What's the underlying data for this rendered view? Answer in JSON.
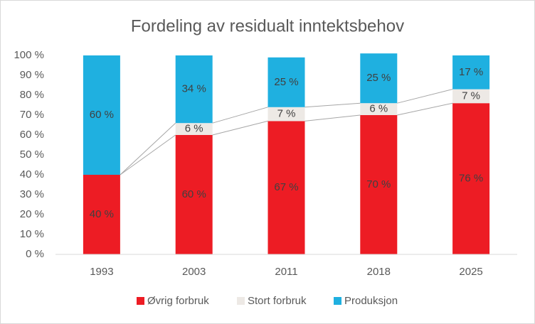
{
  "chart_data": {
    "type": "stacked_bar_percent",
    "title": "Fordeling av residualt inntektsbehov",
    "categories": [
      "1993",
      "2003",
      "2011",
      "2018",
      "2025"
    ],
    "series": [
      {
        "name": "Øvrig forbruk",
        "color": "#ed1c24",
        "values": [
          40,
          60,
          67,
          70,
          76
        ],
        "value_labels": [
          "40 %",
          "60 %",
          "67 %",
          "70 %",
          "76 %"
        ]
      },
      {
        "name": "Stort forbruk",
        "color": "#ede9e5",
        "values": [
          0,
          6,
          7,
          6,
          7
        ],
        "value_labels": [
          null,
          "6 %",
          "7 %",
          "6 %",
          "7 %"
        ]
      },
      {
        "name": "Produksjon",
        "color": "#1fb0e0",
        "values": [
          60,
          34,
          25,
          25,
          17
        ],
        "value_labels": [
          "60 %",
          "34 %",
          "25 %",
          "25 %",
          "17 %"
        ]
      }
    ],
    "ylim": [
      0,
      100
    ],
    "yticks": [
      {
        "value": 0,
        "label": "0 %"
      },
      {
        "value": 10,
        "label": "10 %"
      },
      {
        "value": 20,
        "label": "20 %"
      },
      {
        "value": 30,
        "label": "30 %"
      },
      {
        "value": 40,
        "label": "40 %"
      },
      {
        "value": 50,
        "label": "50 %"
      },
      {
        "value": 60,
        "label": "60 %"
      },
      {
        "value": 70,
        "label": "70 %"
      },
      {
        "value": 80,
        "label": "80 %"
      },
      {
        "value": 90,
        "label": "90 %"
      },
      {
        "value": 100,
        "label": "100 %"
      }
    ],
    "grid": false,
    "legend": "bottom"
  }
}
